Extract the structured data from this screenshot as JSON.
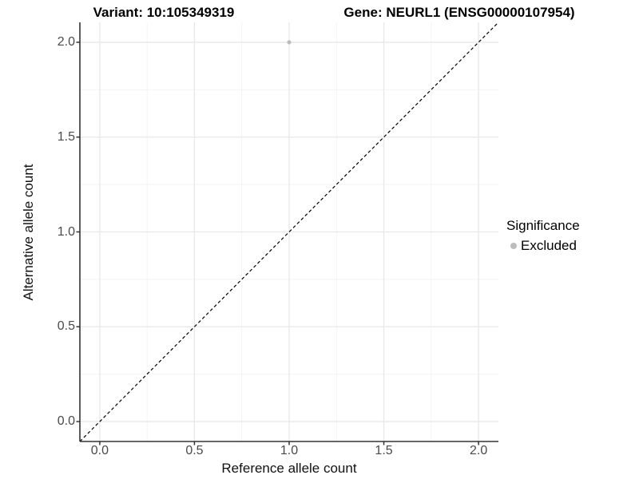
{
  "chart_data": {
    "type": "scatter",
    "titles": {
      "left": "Variant: 10:105349319",
      "right": "Gene: NEURL1 (ENSG00000107954)"
    },
    "xlabel": "Reference allele count",
    "ylabel": "Alternative allele count",
    "xlim": [
      -0.105,
      2.105
    ],
    "ylim": [
      -0.105,
      2.105
    ],
    "x_ticks": [
      "0.0",
      "0.5",
      "1.0",
      "1.5",
      "2.0"
    ],
    "y_ticks": [
      "0.0",
      "0.5",
      "1.0",
      "1.5",
      "2.0"
    ],
    "grid": {
      "major": true,
      "minor": true,
      "major_color": "#e8e8e8",
      "minor_color": "#f2f2f2"
    },
    "identity_line": {
      "style": "dashed",
      "equation": "y = x",
      "color": "#000000"
    },
    "axis_line_color": "#333333",
    "series": [
      {
        "name": "Excluded",
        "marker_color": "#bdbdbd",
        "points": [
          {
            "x": 1.0,
            "y": 2.0
          }
        ]
      }
    ],
    "legend": {
      "title": "Significance",
      "position": "right",
      "items": [
        {
          "label": "Excluded",
          "color": "#bdbdbd"
        }
      ]
    }
  }
}
